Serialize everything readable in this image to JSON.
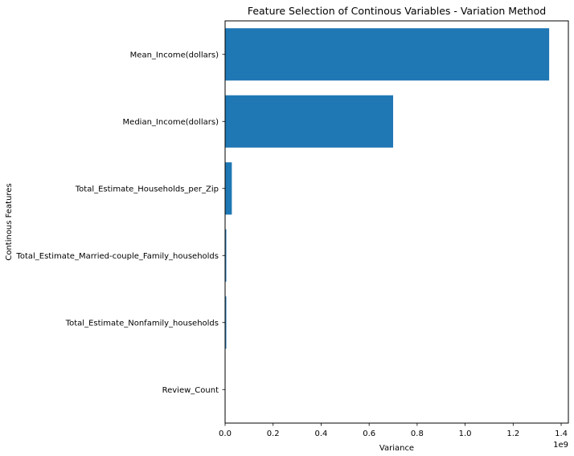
{
  "chart_data": {
    "type": "bar",
    "orientation": "horizontal",
    "title": "Feature Selection of Continous Variables - Variation Method",
    "xlabel": "Variance",
    "ylabel": "Continous Features",
    "offset_text": "1e9",
    "xlim": [
      0,
      1.43
    ],
    "x_ticks": [
      "0.0",
      "0.2",
      "0.4",
      "0.6",
      "0.8",
      "1.0",
      "1.2",
      "1.4"
    ],
    "x_tick_values": [
      0,
      0.2,
      0.4,
      0.6,
      0.8,
      1.0,
      1.2,
      1.4
    ],
    "categories": [
      "Mean_Income(dollars)",
      "Median_Income(dollars)",
      "Total_Estimate_Households_per_Zip",
      "Total_Estimate_Married-couple_Family_households",
      "Total_Estimate_Nonfamily_households",
      "Review_Count"
    ],
    "values": [
      1.35,
      0.7,
      0.028,
      0.005,
      0.005,
      0.0
    ],
    "bar_color": "#1f77b4",
    "grid": false,
    "legend": "none"
  }
}
